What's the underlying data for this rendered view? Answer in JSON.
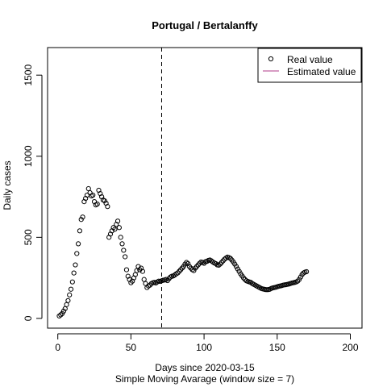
{
  "chart_data": {
    "type": "scatter",
    "title": "Portugal / Bertalanffy",
    "xlabel": "Days since 2020-03-15",
    "subtitle": "Simple Moving Avarage (window size = 7)",
    "ylabel": "Daily cases",
    "xlim": [
      -7,
      208
    ],
    "ylim": [
      -60,
      1670
    ],
    "x_ticks": [
      0,
      50,
      100,
      150,
      200
    ],
    "y_ticks": [
      0,
      500,
      1000,
      1500
    ],
    "vline_x": 71,
    "legend": {
      "position": "top-right",
      "items": [
        {
          "label": "Real value",
          "style": "open-circle"
        },
        {
          "label": "Estimated value",
          "style": "line",
          "color": "#b03a8a"
        }
      ]
    },
    "series": [
      {
        "name": "Real value",
        "x": [
          1,
          2,
          3,
          4,
          5,
          6,
          7,
          8,
          9,
          10,
          11,
          12,
          13,
          14,
          15,
          16,
          17,
          18,
          19,
          20,
          21,
          22,
          23,
          24,
          25,
          26,
          27,
          28,
          29,
          30,
          31,
          32,
          33,
          34,
          35,
          36,
          37,
          38,
          39,
          40,
          41,
          42,
          43,
          44,
          45,
          46,
          47,
          48,
          49,
          50,
          51,
          52,
          53,
          54,
          55,
          56,
          57,
          58,
          59,
          60,
          61,
          62,
          63,
          64,
          65,
          66,
          67,
          68,
          69,
          70,
          71,
          72,
          73,
          74,
          75,
          76,
          77,
          78,
          79,
          80,
          81,
          82,
          83,
          84,
          85,
          86,
          87,
          88,
          89,
          90,
          91,
          92,
          93,
          94,
          95,
          96,
          97,
          98,
          99,
          100,
          101,
          102,
          103,
          104,
          105,
          106,
          107,
          108,
          109,
          110,
          111,
          112,
          113,
          114,
          115,
          116,
          117,
          118,
          119,
          120,
          121,
          122,
          123,
          124,
          125,
          126,
          127,
          128,
          129,
          130,
          131,
          132,
          133,
          134,
          135,
          136,
          137,
          138,
          139,
          140,
          141,
          142,
          143,
          144,
          145,
          146,
          147,
          148,
          149,
          150,
          151,
          152,
          153,
          154,
          155,
          156,
          157,
          158,
          159,
          160,
          161,
          162,
          163,
          164,
          165,
          166,
          167,
          168,
          169,
          170
        ],
        "y": [
          15,
          22,
          30,
          45,
          60,
          85,
          110,
          145,
          180,
          225,
          280,
          330,
          400,
          460,
          540,
          610,
          625,
          720,
          740,
          760,
          800,
          775,
          755,
          760,
          720,
          700,
          705,
          790,
          770,
          750,
          730,
          725,
          710,
          690,
          500,
          520,
          540,
          560,
          550,
          580,
          600,
          560,
          500,
          460,
          420,
          380,
          300,
          260,
          240,
          220,
          230,
          250,
          270,
          295,
          320,
          300,
          310,
          290,
          240,
          215,
          190,
          200,
          205,
          215,
          220,
          222,
          218,
          225,
          230,
          228,
          232,
          235,
          237,
          240,
          233,
          245,
          255,
          260,
          262,
          268,
          275,
          280,
          290,
          300,
          310,
          320,
          335,
          345,
          338,
          320,
          310,
          300,
          295,
          310,
          320,
          330,
          340,
          348,
          345,
          340,
          350,
          352,
          358,
          360,
          355,
          348,
          342,
          338,
          330,
          328,
          335,
          345,
          355,
          365,
          372,
          378,
          375,
          370,
          360,
          348,
          335,
          320,
          305,
          290,
          275,
          262,
          250,
          240,
          232,
          228,
          225,
          222,
          215,
          210,
          205,
          200,
          195,
          190,
          185,
          182,
          180,
          178,
          177,
          178,
          180,
          185,
          188,
          190,
          192,
          195,
          198,
          200,
          202,
          205,
          207,
          208,
          210,
          212,
          215,
          218,
          220,
          222,
          225,
          230,
          240,
          255,
          270,
          280,
          285,
          288
        ]
      }
    ]
  }
}
